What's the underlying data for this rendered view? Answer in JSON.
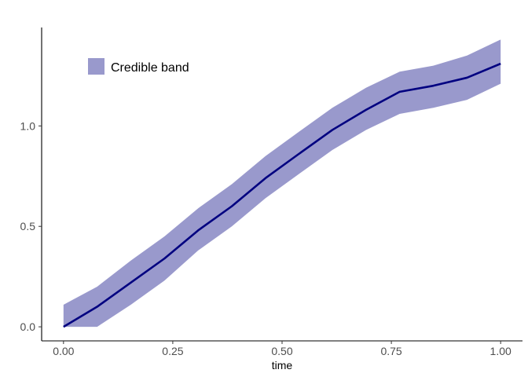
{
  "chart_data": {
    "type": "area",
    "xlabel": "time",
    "ylabel": "",
    "title": "",
    "xlim": [
      -0.05,
      1.05
    ],
    "ylim": [
      -0.07,
      1.49
    ],
    "x_ticks": [
      0.0,
      0.25,
      0.5,
      0.75,
      1.0
    ],
    "x_tick_labels": [
      "0.00",
      "0.25",
      "0.50",
      "0.75",
      "1.00"
    ],
    "y_ticks": [
      0.0,
      0.5,
      1.0
    ],
    "y_tick_labels": [
      "0.0",
      "0.5",
      "1.0"
    ],
    "grid": false,
    "legend_position": "top-left",
    "x": [
      0.0,
      0.077,
      0.154,
      0.231,
      0.308,
      0.385,
      0.462,
      0.538,
      0.615,
      0.692,
      0.769,
      0.846,
      0.923,
      1.0
    ],
    "series": [
      {
        "name": "Credible band",
        "kind": "band",
        "color": "#9999cc",
        "lower": [
          0.0,
          0.0,
          0.11,
          0.23,
          0.38,
          0.5,
          0.64,
          0.76,
          0.88,
          0.98,
          1.06,
          1.09,
          1.13,
          1.21
        ],
        "upper": [
          0.11,
          0.2,
          0.33,
          0.45,
          0.59,
          0.71,
          0.85,
          0.97,
          1.09,
          1.19,
          1.27,
          1.3,
          1.35,
          1.43
        ]
      },
      {
        "kind": "line",
        "color": "#000080",
        "values": [
          0.0,
          0.1,
          0.22,
          0.34,
          0.48,
          0.6,
          0.74,
          0.86,
          0.98,
          1.08,
          1.17,
          1.2,
          1.24,
          1.31
        ]
      }
    ]
  }
}
